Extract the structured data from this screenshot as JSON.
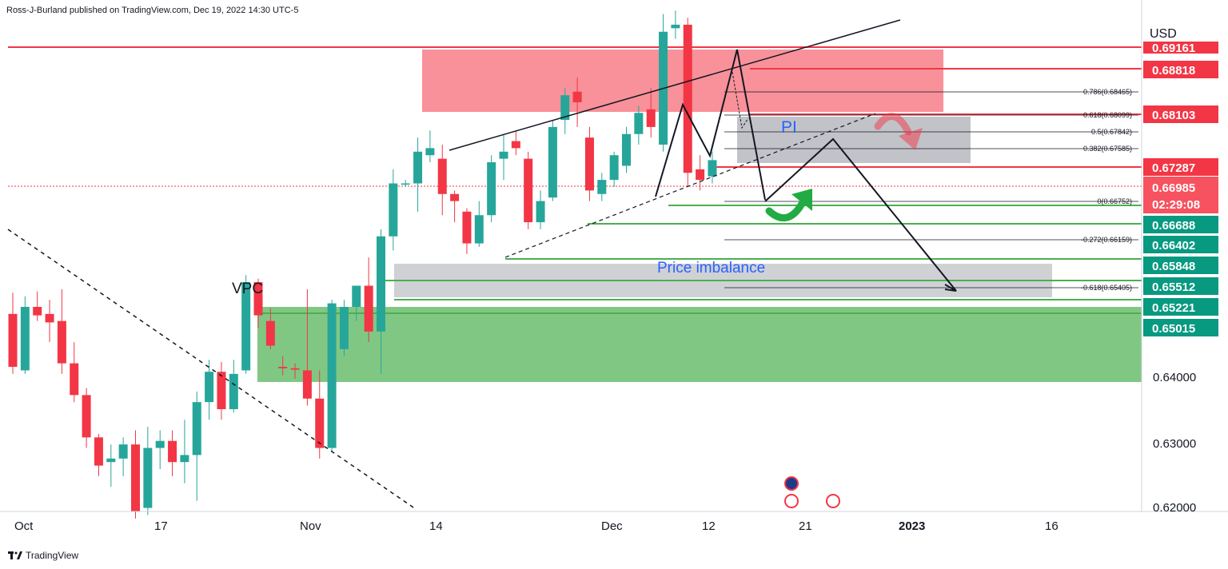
{
  "header": {
    "published": "Ross-J-Burland published on TradingView.com, Dec 19, 2022 14:30 UTC-5"
  },
  "footer": {
    "brand": "TradingView"
  },
  "colors": {
    "bull": "#26a69a",
    "bear": "#f23645",
    "accent_bull": "#089981"
  },
  "chart_data": {
    "type": "candlestick",
    "symbol_currency": "USD",
    "x_labels": [
      "Oct",
      "17",
      "Nov",
      "14",
      "Dec",
      "12",
      "21",
      "2023",
      "16"
    ],
    "y_ticks": [
      "0.64000",
      "0.63000",
      "0.62000"
    ],
    "ylim": [
      0.62,
      0.6925
    ],
    "price_tags": [
      {
        "label": "0.69161",
        "style": "red"
      },
      {
        "label": "0.68818",
        "style": "red"
      },
      {
        "label": "0.68103",
        "style": "red"
      },
      {
        "label": "0.67287",
        "style": "red"
      },
      {
        "label": "0.66985",
        "sub": "02:29:08",
        "style": "current"
      },
      {
        "label": "0.66688",
        "style": "green"
      },
      {
        "label": "0.66402",
        "style": "green"
      },
      {
        "label": "0.65848",
        "style": "green"
      },
      {
        "label": "0.65512",
        "style": "green"
      },
      {
        "label": "0.65221",
        "style": "green"
      },
      {
        "label": "0.65015",
        "style": "green"
      }
    ],
    "fib_levels": [
      {
        "label": "0.786(0.68465)"
      },
      {
        "label": "0.618(0.68099)"
      },
      {
        "label": "0.5(0.67842)"
      },
      {
        "label": "0.382(0.67585)"
      },
      {
        "label": "0(0.66752)"
      },
      {
        "label": "-0.272(0.66159)"
      },
      {
        "label": "-0.618(0.65405)"
      }
    ],
    "annotations": [
      "VPC",
      "PI",
      "Price imbalance"
    ],
    "candles": [
      {
        "o": 0.648,
        "h": 0.651,
        "l": 0.6395,
        "c": 0.6405
      },
      {
        "o": 0.64,
        "h": 0.6505,
        "l": 0.6395,
        "c": 0.649
      },
      {
        "o": 0.649,
        "h": 0.6512,
        "l": 0.647,
        "c": 0.6478
      },
      {
        "o": 0.648,
        "h": 0.65,
        "l": 0.644,
        "c": 0.6468
      },
      {
        "o": 0.647,
        "h": 0.6515,
        "l": 0.6395,
        "c": 0.641
      },
      {
        "o": 0.641,
        "h": 0.644,
        "l": 0.6355,
        "c": 0.6365
      },
      {
        "o": 0.6365,
        "h": 0.6375,
        "l": 0.629,
        "c": 0.6305
      },
      {
        "o": 0.6305,
        "h": 0.631,
        "l": 0.625,
        "c": 0.6265
      },
      {
        "o": 0.627,
        "h": 0.6295,
        "l": 0.6235,
        "c": 0.6275
      },
      {
        "o": 0.6275,
        "h": 0.6305,
        "l": 0.625,
        "c": 0.6295
      },
      {
        "o": 0.6295,
        "h": 0.6315,
        "l": 0.619,
        "c": 0.62
      },
      {
        "o": 0.6205,
        "h": 0.632,
        "l": 0.6195,
        "c": 0.629
      },
      {
        "o": 0.629,
        "h": 0.6315,
        "l": 0.626,
        "c": 0.63
      },
      {
        "o": 0.63,
        "h": 0.6315,
        "l": 0.625,
        "c": 0.627
      },
      {
        "o": 0.627,
        "h": 0.633,
        "l": 0.624,
        "c": 0.628
      },
      {
        "o": 0.628,
        "h": 0.637,
        "l": 0.6215,
        "c": 0.6355
      },
      {
        "o": 0.6355,
        "h": 0.6415,
        "l": 0.633,
        "c": 0.6398
      },
      {
        "o": 0.6398,
        "h": 0.6412,
        "l": 0.633,
        "c": 0.6345
      },
      {
        "o": 0.6345,
        "h": 0.6415,
        "l": 0.634,
        "c": 0.6395
      },
      {
        "o": 0.64,
        "h": 0.6535,
        "l": 0.6395,
        "c": 0.6525
      },
      {
        "o": 0.6525,
        "h": 0.653,
        "l": 0.646,
        "c": 0.6478
      },
      {
        "o": 0.647,
        "h": 0.6488,
        "l": 0.643,
        "c": 0.6435
      },
      {
        "o": 0.6405,
        "h": 0.642,
        "l": 0.6393,
        "c": 0.6403
      },
      {
        "o": 0.6403,
        "h": 0.641,
        "l": 0.6388,
        "c": 0.6401
      },
      {
        "o": 0.64,
        "h": 0.6515,
        "l": 0.635,
        "c": 0.636
      },
      {
        "o": 0.636,
        "h": 0.64,
        "l": 0.6275,
        "c": 0.629
      },
      {
        "o": 0.629,
        "h": 0.65,
        "l": 0.6285,
        "c": 0.6495
      },
      {
        "o": 0.643,
        "h": 0.65,
        "l": 0.642,
        "c": 0.649
      },
      {
        "o": 0.649,
        "h": 0.652,
        "l": 0.647,
        "c": 0.652
      },
      {
        "o": 0.652,
        "h": 0.656,
        "l": 0.644,
        "c": 0.6455
      },
      {
        "o": 0.6455,
        "h": 0.66,
        "l": 0.6395,
        "c": 0.659
      },
      {
        "o": 0.659,
        "h": 0.6685,
        "l": 0.657,
        "c": 0.6665
      },
      {
        "o": 0.6665,
        "h": 0.667,
        "l": 0.666,
        "c": 0.6665
      },
      {
        "o": 0.6665,
        "h": 0.673,
        "l": 0.6625,
        "c": 0.671
      },
      {
        "o": 0.6705,
        "h": 0.674,
        "l": 0.6695,
        "c": 0.6715
      },
      {
        "o": 0.67,
        "h": 0.672,
        "l": 0.662,
        "c": 0.665
      },
      {
        "o": 0.665,
        "h": 0.6655,
        "l": 0.661,
        "c": 0.664
      },
      {
        "o": 0.6625,
        "h": 0.663,
        "l": 0.6565,
        "c": 0.658
      },
      {
        "o": 0.658,
        "h": 0.664,
        "l": 0.6575,
        "c": 0.662
      },
      {
        "o": 0.662,
        "h": 0.6705,
        "l": 0.661,
        "c": 0.6695
      },
      {
        "o": 0.67,
        "h": 0.6735,
        "l": 0.667,
        "c": 0.671
      },
      {
        "o": 0.6725,
        "h": 0.674,
        "l": 0.6705,
        "c": 0.6715
      },
      {
        "o": 0.67,
        "h": 0.671,
        "l": 0.66,
        "c": 0.661
      },
      {
        "o": 0.661,
        "h": 0.6655,
        "l": 0.66,
        "c": 0.664
      },
      {
        "o": 0.6645,
        "h": 0.6755,
        "l": 0.664,
        "c": 0.6745
      },
      {
        "o": 0.6755,
        "h": 0.68,
        "l": 0.6735,
        "c": 0.679
      },
      {
        "o": 0.6795,
        "h": 0.6815,
        "l": 0.6745,
        "c": 0.678
      },
      {
        "o": 0.673,
        "h": 0.6745,
        "l": 0.664,
        "c": 0.6655
      },
      {
        "o": 0.665,
        "h": 0.668,
        "l": 0.664,
        "c": 0.667
      },
      {
        "o": 0.667,
        "h": 0.671,
        "l": 0.666,
        "c": 0.6705
      },
      {
        "o": 0.669,
        "h": 0.6745,
        "l": 0.668,
        "c": 0.6735
      },
      {
        "o": 0.6735,
        "h": 0.6775,
        "l": 0.672,
        "c": 0.6765
      },
      {
        "o": 0.677,
        "h": 0.68,
        "l": 0.673,
        "c": 0.6745
      },
      {
        "o": 0.672,
        "h": 0.6905,
        "l": 0.671,
        "c": 0.688
      },
      {
        "o": 0.6885,
        "h": 0.691,
        "l": 0.687,
        "c": 0.689
      },
      {
        "o": 0.689,
        "h": 0.69,
        "l": 0.666,
        "c": 0.668
      },
      {
        "o": 0.6685,
        "h": 0.6705,
        "l": 0.6655,
        "c": 0.667
      },
      {
        "o": 0.6675,
        "h": 0.671,
        "l": 0.6665,
        "c": 0.6698
      }
    ]
  }
}
